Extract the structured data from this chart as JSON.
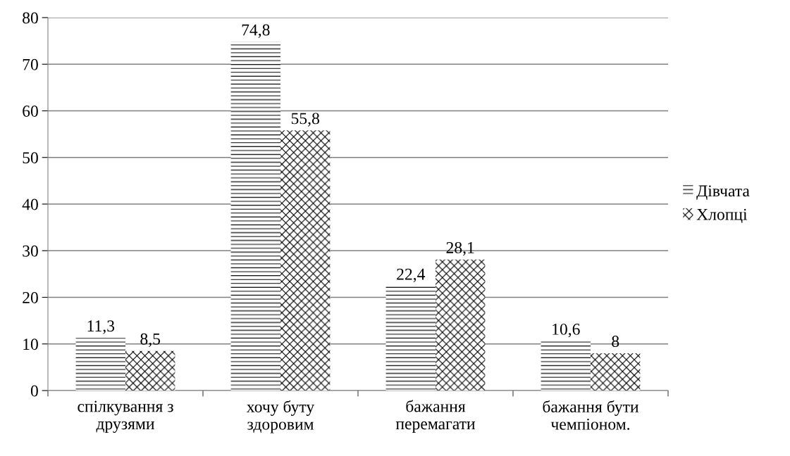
{
  "chart_data": {
    "type": "bar",
    "categories": [
      "спілкування з\nдрузями",
      "хочу буту\nздоровим",
      "бажання\nперемагати",
      "бажання бути\nчемпіоном."
    ],
    "series": [
      {
        "name": "Дівчата",
        "color": "#000000",
        "values": [
          11.3,
          74.8,
          22.4,
          10.6
        ],
        "value_labels": [
          "11,3",
          "74,8",
          "22,4",
          "10,6"
        ]
      },
      {
        "name": "Хлопці",
        "color": "#000000",
        "values": [
          8.5,
          55.8,
          28.1,
          8
        ],
        "value_labels": [
          "8,5",
          "55,8",
          "28,1",
          "8"
        ]
      }
    ],
    "ylim": [
      0,
      80
    ],
    "yticks": [
      0,
      10,
      20,
      30,
      40,
      50,
      60,
      70,
      80
    ],
    "grid": "y",
    "legend": "right"
  }
}
